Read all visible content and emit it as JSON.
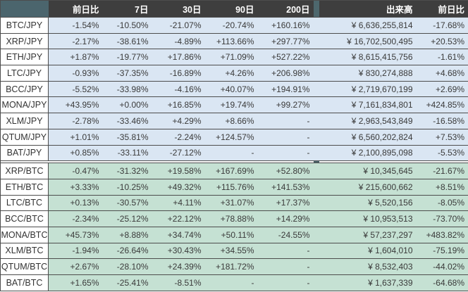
{
  "colors": {
    "header_bg": "#3e3e3e",
    "header_text": "#ffffff",
    "corner_and_divider_bg": "#4b656d",
    "jpy_section_row_bg": "#dae6f3",
    "btc_section_row_bg": "#c5e1d3",
    "pair_cell_bg": "#ffffff",
    "grid_border": "#4d4d4d",
    "data_text": "#3a3a3a"
  },
  "table": {
    "row_keys": [
      "pair",
      "change_1d",
      "d7",
      "d30",
      "d90",
      "d200",
      "volume",
      "volume_change_1d"
    ],
    "columns": [
      {
        "key": "pair",
        "label": ""
      },
      {
        "key": "change_1d",
        "label": "前日比"
      },
      {
        "key": "d7",
        "label": "7日"
      },
      {
        "key": "d30",
        "label": "30日"
      },
      {
        "key": "d90",
        "label": "90日"
      },
      {
        "key": "d200",
        "label": "200日"
      },
      {
        "key": "volume",
        "label": "出来高"
      },
      {
        "key": "volume_change_1d",
        "label": "前日比"
      }
    ],
    "sections": [
      {
        "name": "jpy",
        "rows": [
          {
            "pair": "BTC/JPY",
            "change_1d": "-1.54%",
            "d7": "-10.50%",
            "d30": "-21.07%",
            "d90": "-20.74%",
            "d200": "+160.16%",
            "volume": "¥ 6,636,255,814",
            "volume_change_1d": "-17.68%"
          },
          {
            "pair": "XRP/JPY",
            "change_1d": "-2.17%",
            "d7": "-38.61%",
            "d30": "-4.89%",
            "d90": "+113.66%",
            "d200": "+297.77%",
            "volume": "¥ 16,702,500,495",
            "volume_change_1d": "+20.53%"
          },
          {
            "pair": "ETH/JPY",
            "change_1d": "+1.87%",
            "d7": "-19.77%",
            "d30": "+17.86%",
            "d90": "+71.09%",
            "d200": "+527.22%",
            "volume": "¥ 8,615,415,756",
            "volume_change_1d": "-1.61%"
          },
          {
            "pair": "LTC/JPY",
            "change_1d": "-0.93%",
            "d7": "-37.35%",
            "d30": "-16.89%",
            "d90": "+4.26%",
            "d200": "+206.98%",
            "volume": "¥ 830,274,888",
            "volume_change_1d": "+4.68%"
          },
          {
            "pair": "BCC/JPY",
            "change_1d": "-5.52%",
            "d7": "-33.98%",
            "d30": "-4.16%",
            "d90": "+40.07%",
            "d200": "+194.91%",
            "volume": "¥ 2,719,670,199",
            "volume_change_1d": "+2.69%"
          },
          {
            "pair": "MONA/JPY",
            "change_1d": "+43.95%",
            "d7": "+0.00%",
            "d30": "+16.85%",
            "d90": "+19.74%",
            "d200": "+99.27%",
            "volume": "¥ 7,161,834,801",
            "volume_change_1d": "+424.85%"
          },
          {
            "pair": "XLM/JPY",
            "change_1d": "-2.78%",
            "d7": "-33.46%",
            "d30": "+4.29%",
            "d90": "+8.66%",
            "d200": "-",
            "volume": "¥ 2,963,543,849",
            "volume_change_1d": "-16.58%"
          },
          {
            "pair": "QTUM/JPY",
            "change_1d": "+1.01%",
            "d7": "-35.81%",
            "d30": "-2.24%",
            "d90": "+124.57%",
            "d200": "-",
            "volume": "¥ 6,560,202,824",
            "volume_change_1d": "+7.53%"
          },
          {
            "pair": "BAT/JPY",
            "change_1d": "+0.85%",
            "d7": "-33.11%",
            "d30": "-27.12%",
            "d90": "-",
            "d200": "-",
            "volume": "¥ 2,100,895,098",
            "volume_change_1d": "-5.53%"
          }
        ]
      },
      {
        "name": "btc",
        "rows": [
          {
            "pair": "XRP/BTC",
            "change_1d": "-0.47%",
            "d7": "-31.32%",
            "d30": "+19.58%",
            "d90": "+167.69%",
            "d200": "+52.80%",
            "volume": "¥ 10,345,645",
            "volume_change_1d": "-21.67%"
          },
          {
            "pair": "ETH/BTC",
            "change_1d": "+3.33%",
            "d7": "-10.25%",
            "d30": "+49.32%",
            "d90": "+115.76%",
            "d200": "+141.53%",
            "volume": "¥ 215,600,662",
            "volume_change_1d": "+8.51%"
          },
          {
            "pair": "LTC/BTC",
            "change_1d": "+0.13%",
            "d7": "-30.57%",
            "d30": "+4.11%",
            "d90": "+31.07%",
            "d200": "+17.37%",
            "volume": "¥ 5,520,156",
            "volume_change_1d": "-8.05%"
          },
          {
            "pair": "BCC/BTC",
            "change_1d": "-2.34%",
            "d7": "-25.12%",
            "d30": "+22.12%",
            "d90": "+78.88%",
            "d200": "+14.29%",
            "volume": "¥ 10,953,513",
            "volume_change_1d": "-73.70%"
          },
          {
            "pair": "MONA/BTC",
            "change_1d": "+45.73%",
            "d7": "+8.88%",
            "d30": "+34.74%",
            "d90": "+50.11%",
            "d200": "-24.55%",
            "volume": "¥ 57,237,297",
            "volume_change_1d": "+483.82%"
          },
          {
            "pair": "XLM/BTC",
            "change_1d": "-1.94%",
            "d7": "-26.64%",
            "d30": "+30.43%",
            "d90": "+34.55%",
            "d200": "-",
            "volume": "¥ 1,604,010",
            "volume_change_1d": "-75.19%"
          },
          {
            "pair": "QTUM/BTC",
            "change_1d": "+2.67%",
            "d7": "-28.10%",
            "d30": "+24.39%",
            "d90": "+181.72%",
            "d200": "-",
            "volume": "¥ 8,532,403",
            "volume_change_1d": "-44.02%"
          },
          {
            "pair": "BAT/BTC",
            "change_1d": "+1.65%",
            "d7": "-25.41%",
            "d30": "-8.51%",
            "d90": "-",
            "d200": "-",
            "volume": "¥ 1,637,339",
            "volume_change_1d": "-64.68%"
          }
        ]
      }
    ]
  }
}
